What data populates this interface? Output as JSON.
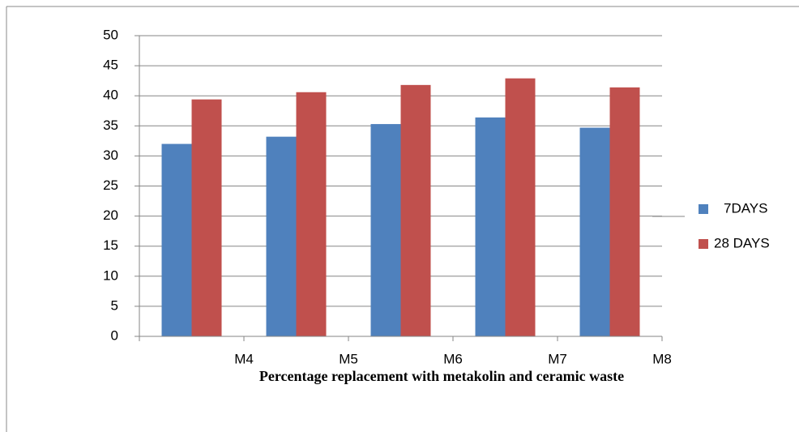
{
  "chart_data": {
    "type": "bar",
    "x_label": "Percentage replacement with metakolin and ceramic waste",
    "categories": [
      "M4",
      "M5",
      "M6",
      "M7",
      "M8"
    ],
    "series": [
      {
        "name": "7DAYS",
        "color": "#4f81bd",
        "values": [
          32,
          33.2,
          35.3,
          36.4,
          34.7
        ]
      },
      {
        "name": "28 DAYS",
        "color": "#c0504d",
        "values": [
          39.4,
          40.6,
          41.8,
          42.9,
          41.4
        ]
      }
    ],
    "ylim": [
      0,
      50
    ],
    "yticks": [
      0,
      5,
      10,
      15,
      20,
      25,
      30,
      35,
      40,
      45,
      50
    ],
    "grid": true,
    "legend": "right"
  }
}
